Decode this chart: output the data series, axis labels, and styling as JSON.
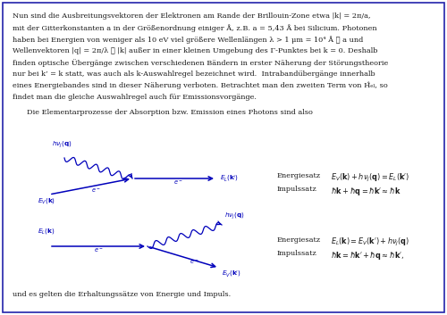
{
  "figsize": [
    5.0,
    3.53
  ],
  "dpi": 100,
  "bg_color": "#ffffff",
  "border_color": "#2222aa",
  "border_lw": 1.2,
  "text_color": "#1a1a1a",
  "blue_color": "#0000bb",
  "font_size_main": 5.85,
  "lines": [
    "Nun sind die Ausbreitungsvektoren der Elektronen am Rande der Brillouin-Zone etwa |k| = 2π/a,",
    "mit der Gitterkonstanten a in der Größenordnung einiger Å, z.B. a = 5,43 Å bei Silicium. Photonen",
    "haben bei Energien von weniger als 10 eV viel größere Wellenlängen λ > 1 μm = 10⁴ Å ≫ a und",
    "Wellenvektoren |q| = 2π/λ ≪ |k| außer in einer kleinen Umgebung des Γ-Punktes bei k = 0. Deshalb",
    "finden optische Übergänge zwischen verschiedenen Bändern in erster Näherung der Störungstheorie",
    "nur bei k’ = k statt, was auch als k-Auswahlregel bezeichnet wird.  Intrabandübergänge innerhalb",
    "eines Energiebandes sind in dieser Näherung verboten. Betrachtet man den zweiten Term von Ĥₑₗ, so",
    "findet man die gleiche Auswahlregel auch für Emissionsvorgänge."
  ],
  "paragraph2": "Die Elementarprozesse der Absorption bzw. Emission eines Photons sind also",
  "diag1_label_photon": "$h\\nu_j(\\mathbf{q})$",
  "diag1_label_ev": "$E_V(\\mathbf{k})$",
  "diag1_label_el": "$E_L(\\mathbf{k}')$",
  "diag1_label_eminus1": "$e^-$",
  "diag1_label_eminus2": "$e^-$",
  "diag2_label_el": "$E_L(\\mathbf{k})$",
  "diag2_label_photon": "$h\\nu_j(\\mathbf{q})$",
  "diag2_label_ev": "$E_V(\\mathbf{k}')$",
  "diag2_label_eminus1": "$e^-$",
  "diag2_label_eminus2": "$e^-$",
  "eq1_label1": "Energiesatz",
  "eq1_formula1": "$E_V(\\mathbf{k}) + h\\nu_j(\\mathbf{q}) = E_L(\\mathbf{k}')$",
  "eq1_label2": "Impulssatz",
  "eq1_formula2": "$\\hbar\\mathbf{k} + \\hbar\\mathbf{q} = \\hbar\\mathbf{k}' \\approx \\hbar\\mathbf{k}$",
  "eq2_label1": "Energiesatz",
  "eq2_formula1": "$E_L(\\mathbf{k}) = E_V(\\mathbf{k}') + h\\nu_j(\\mathbf{q})$",
  "eq2_label2": "Impulssatz",
  "eq2_formula2": "$\\hbar\\mathbf{k} = \\hbar\\mathbf{k}' + \\hbar\\mathbf{q} \\approx \\hbar\\mathbf{k}',$",
  "footer": "und es gelten die Erhaltungssätze von Energie und Impuls."
}
